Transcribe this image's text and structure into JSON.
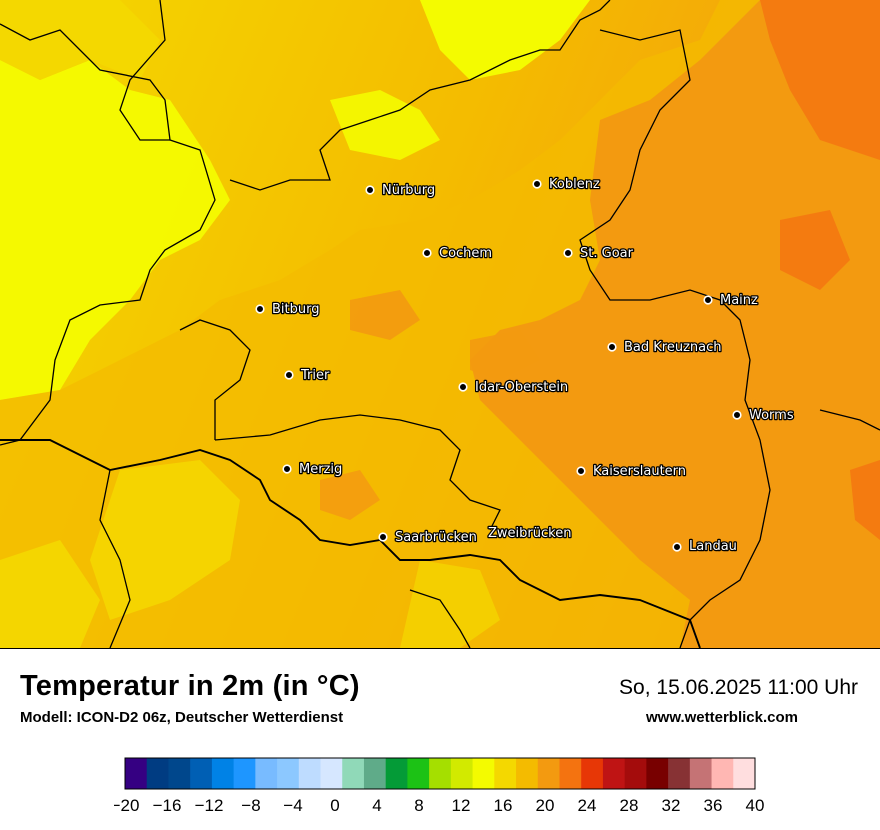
{
  "title": "Temperatur in 2m (in °C)",
  "model": "Modell: ICON-D2 06z, Deutscher Wetterdienst",
  "datetime": "So, 15.06.2025 11:00 Uhr",
  "website": "www.wetterblick.com",
  "cities": [
    {
      "name": "Nürburg"
    },
    {
      "name": "Koblenz"
    },
    {
      "name": "Cochem"
    },
    {
      "name": "St. Goar"
    },
    {
      "name": "Bitburg"
    },
    {
      "name": "Mainz"
    },
    {
      "name": "Bad Kreuznach"
    },
    {
      "name": "Trier"
    },
    {
      "name": "Idar-Oberstein"
    },
    {
      "name": "Worms"
    },
    {
      "name": "Merzig"
    },
    {
      "name": "Kaiserslautern"
    },
    {
      "name": "Saarbrücken"
    },
    {
      "name": "Zweibrücken"
    },
    {
      "name": "Landau"
    }
  ],
  "legend": {
    "unit": "°C",
    "min": -20,
    "max": 40,
    "step": 2,
    "tick_labels": [
      "−20",
      "−16",
      "−12",
      "−8",
      "−4",
      "0",
      "4",
      "8",
      "12",
      "16",
      "20",
      "24",
      "28",
      "32",
      "36",
      "40"
    ],
    "colors": [
      "#350082",
      "#003c82",
      "#00478c",
      "#005fb4",
      "#0082e6",
      "#1e96ff",
      "#78bbff",
      "#8cc8ff",
      "#bedcff",
      "#d6e7ff",
      "#90d9b8",
      "#5fab89",
      "#049b37",
      "#1cc215",
      "#a5df00",
      "#d2ea00",
      "#f4fb00",
      "#f4d800",
      "#f4bb00",
      "#f39a10",
      "#f47310",
      "#e73706",
      "#bf1414",
      "#a40c0c",
      "#780000",
      "#873234",
      "#c57375",
      "#ffb7b3",
      "#ffdedf"
    ]
  }
}
